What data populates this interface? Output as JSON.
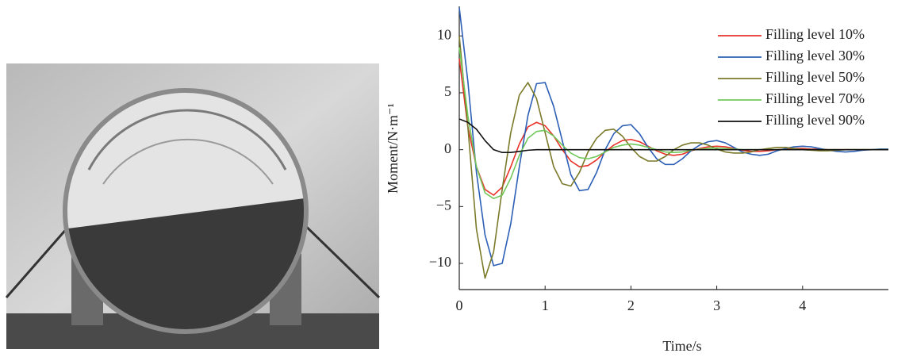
{
  "chart_data": {
    "type": "line",
    "xlabel": "Time/s",
    "ylabel": "Moment/N·m⁻¹",
    "x": [
      0,
      0.1,
      0.2,
      0.3,
      0.4,
      0.5,
      0.6,
      0.7,
      0.8,
      0.9,
      1,
      1.1,
      1.2,
      1.3,
      1.4,
      1.5,
      1.6,
      1.7,
      1.8,
      1.9,
      2,
      2.1,
      2.2,
      2.3,
      2.4,
      2.5,
      2.6,
      2.7,
      2.8,
      2.9,
      3,
      3.1,
      3.2,
      3.3,
      3.4,
      3.5,
      3.6,
      3.7,
      3.8,
      3.9,
      4,
      4.1,
      4.2,
      4.3,
      4.4,
      4.5,
      4.6,
      4.7,
      4.8,
      4.9,
      5
    ],
    "series": [
      {
        "name": "Filling level 10%",
        "color": "#e8322a",
        "values": [
          8,
          2,
          -1.5,
          -3.5,
          -4,
          -3.3,
          -1.5,
          0.5,
          2,
          2.4,
          2.1,
          1.2,
          0,
          -1,
          -1.5,
          -1.4,
          -0.9,
          -0.2,
          0.4,
          0.8,
          0.9,
          0.7,
          0.3,
          -0.1,
          -0.4,
          -0.5,
          -0.4,
          -0.1,
          0.1,
          0.25,
          0.3,
          0.25,
          0.1,
          -0.05,
          -0.15,
          -0.15,
          -0.1,
          0,
          0.05,
          0.1,
          0.1,
          0.05,
          0.05,
          0,
          0,
          0,
          0,
          0,
          0,
          0,
          0
        ]
      },
      {
        "name": "Filling level 30%",
        "color": "#2c5fb5",
        "values": [
          12.5,
          6,
          -2,
          -7.5,
          -10.2,
          -10,
          -6.5,
          -1.5,
          3,
          5.8,
          5.9,
          3.8,
          0.8,
          -2.2,
          -3.6,
          -3.5,
          -2,
          0,
          1.4,
          2.1,
          2.2,
          1.4,
          0.2,
          -0.8,
          -1.3,
          -1.3,
          -0.8,
          -0.1,
          0.4,
          0.7,
          0.8,
          0.6,
          0.2,
          -0.2,
          -0.4,
          -0.5,
          -0.4,
          -0.1,
          0.1,
          0.25,
          0.3,
          0.25,
          0.1,
          -0.05,
          -0.15,
          -0.2,
          -0.15,
          -0.05,
          0,
          0.05,
          0.05
        ]
      },
      {
        "name": "Filling level 50%",
        "color": "#7b7a2a",
        "values": [
          10,
          2,
          -7,
          -11.3,
          -9,
          -3.5,
          1.5,
          4.8,
          5.9,
          4.5,
          1.5,
          -1.5,
          -3,
          -3.2,
          -2,
          -0.2,
          1,
          1.7,
          1.8,
          1.2,
          0.2,
          -0.6,
          -1,
          -1,
          -0.6,
          0,
          0.4,
          0.6,
          0.6,
          0.4,
          0.05,
          -0.2,
          -0.3,
          -0.3,
          -0.2,
          0,
          0.1,
          0.2,
          0.2,
          0.1,
          0,
          -0.05,
          -0.1,
          -0.1,
          -0.05,
          0,
          0,
          0,
          0,
          0,
          0
        ]
      },
      {
        "name": "Filling level 70%",
        "color": "#72c85a",
        "values": [
          9,
          3,
          -1.5,
          -3.8,
          -4.3,
          -4,
          -2.5,
          -0.5,
          1,
          1.6,
          1.7,
          1.2,
          0.4,
          -0.3,
          -0.7,
          -0.8,
          -0.6,
          -0.2,
          0.2,
          0.4,
          0.5,
          0.4,
          0.2,
          0,
          -0.2,
          -0.25,
          -0.2,
          -0.05,
          0.05,
          0.1,
          0.15,
          0.1,
          0.05,
          0,
          0,
          0,
          0,
          0,
          0,
          0,
          0,
          0,
          0,
          0,
          0,
          0,
          0,
          0,
          0,
          0,
          0
        ]
      },
      {
        "name": "Filling level 90%",
        "color": "#111111",
        "values": [
          2.7,
          2.4,
          1.8,
          0.8,
          0,
          -0.25,
          -0.25,
          -0.15,
          -0.05,
          0,
          0,
          0,
          0,
          0,
          0,
          0,
          0,
          0,
          0,
          0,
          0,
          0,
          0,
          0,
          0,
          0,
          0,
          0,
          0,
          0,
          0,
          0,
          0,
          0,
          0,
          0,
          0,
          0,
          0,
          0,
          0,
          0,
          0,
          0,
          0,
          0,
          0,
          0,
          0,
          0,
          0
        ]
      }
    ],
    "xlim": [
      0,
      5
    ],
    "ylim": [
      -12.3,
      12.6
    ],
    "xticks": [
      0,
      1,
      2,
      3,
      4
    ],
    "yticks": [
      {
        "value": -10,
        "label": "−10"
      },
      {
        "value": -5,
        "label": "−5"
      },
      0,
      5,
      10
    ],
    "legend": "upper right"
  }
}
